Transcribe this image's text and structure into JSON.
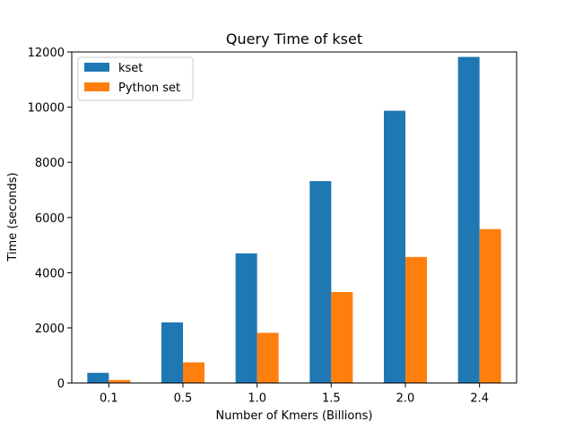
{
  "chart_data": {
    "type": "bar",
    "title": "Query Time of kset",
    "xlabel": "Number of Kmers (Billions)",
    "ylabel": "Time (seconds)",
    "categories": [
      "0.1",
      "0.5",
      "1.0",
      "1.5",
      "2.0",
      "2.4"
    ],
    "series": [
      {
        "name": "kset",
        "color": "#1f77b4",
        "values": [
          370,
          2200,
          4700,
          7320,
          9870,
          11820
        ]
      },
      {
        "name": "Python set",
        "color": "#ff7f0e",
        "values": [
          110,
          750,
          1820,
          3300,
          4570,
          5580
        ]
      }
    ],
    "ylim": [
      0,
      12000
    ],
    "yticks": [
      0,
      2000,
      4000,
      6000,
      8000,
      10000,
      12000
    ],
    "ytick_labels": [
      "0",
      "2000",
      "4000",
      "6000",
      "8000",
      "10000",
      "12000"
    ],
    "legend_position": "upper-left",
    "grid": false
  }
}
